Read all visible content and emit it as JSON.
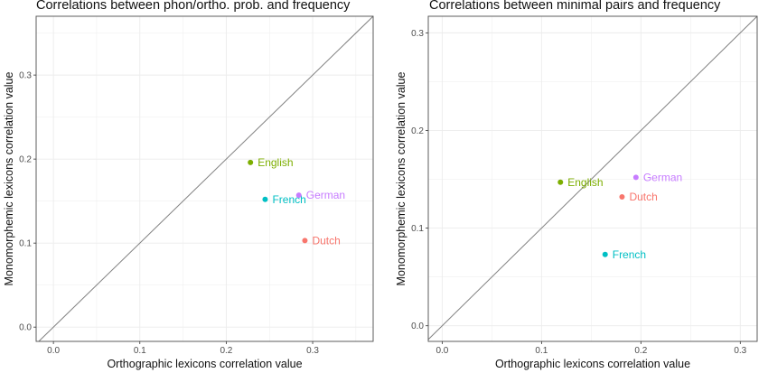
{
  "colors": {
    "English": "#7CAE00",
    "French": "#00BFC4",
    "German": "#C77CFF",
    "Dutch": "#F8766D",
    "diagonal": "#808080",
    "grid": "#ececec",
    "border": "#4d4d4d"
  },
  "chart_data": [
    {
      "type": "scatter",
      "title": "Correlations between phon/ortho. prob. and frequency",
      "xlabel": "Orthographic lexicons correlation value",
      "ylabel": "Monomorphemic lexicons correlation value",
      "xlim": [
        -0.02,
        0.37
      ],
      "ylim": [
        -0.017,
        0.37
      ],
      "xticks": [
        0.0,
        0.1,
        0.2,
        0.3
      ],
      "xtick_labels": [
        "0.0",
        "0.1",
        "0.2",
        "0.3"
      ],
      "yticks": [
        0.0,
        0.1,
        0.2,
        0.3
      ],
      "ytick_labels": [
        "0.0",
        "0.1",
        "0.2",
        "0.3"
      ],
      "grid": true,
      "reference_line": "y = x",
      "points": [
        {
          "label": "English",
          "x": 0.228,
          "y": 0.196
        },
        {
          "label": "French",
          "x": 0.245,
          "y": 0.152
        },
        {
          "label": "German",
          "x": 0.284,
          "y": 0.157
        },
        {
          "label": "Dutch",
          "x": 0.291,
          "y": 0.103
        }
      ]
    },
    {
      "type": "scatter",
      "title": "Correlations between minimal pairs and frequency",
      "xlabel": "Orthographic lexicons correlation value",
      "ylabel": "Monomorphemic lexicons correlation value",
      "xlim": [
        -0.014,
        0.317
      ],
      "ylim": [
        -0.016,
        0.317
      ],
      "xticks": [
        0.0,
        0.1,
        0.2,
        0.3
      ],
      "xtick_labels": [
        "0.0",
        "0.1",
        "0.2",
        "0.3"
      ],
      "yticks": [
        0.0,
        0.1,
        0.2,
        0.3
      ],
      "ytick_labels": [
        "0.0",
        "0.1",
        "0.2",
        "0.3"
      ],
      "grid": true,
      "reference_line": "y = x",
      "points": [
        {
          "label": "English",
          "x": 0.119,
          "y": 0.147
        },
        {
          "label": "German",
          "x": 0.195,
          "y": 0.152
        },
        {
          "label": "Dutch",
          "x": 0.181,
          "y": 0.132
        },
        {
          "label": "French",
          "x": 0.164,
          "y": 0.073
        }
      ]
    }
  ]
}
